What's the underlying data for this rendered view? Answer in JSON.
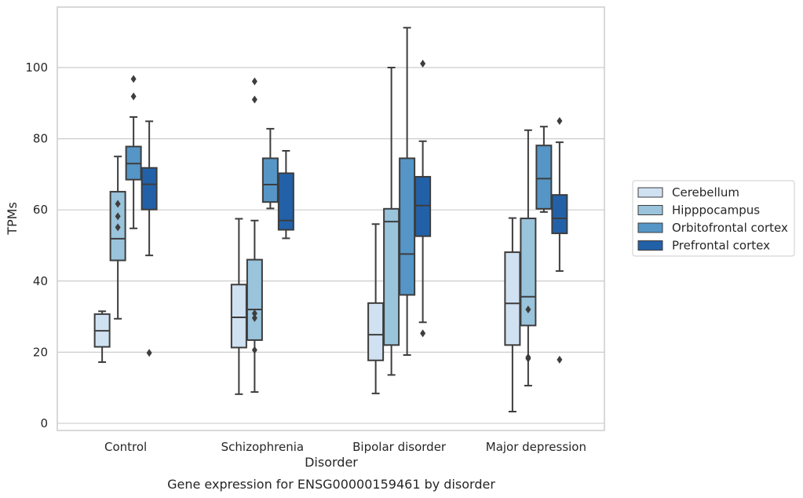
{
  "chart_data": {
    "type": "box",
    "title": "Gene expression for ENSG00000159461 by disorder",
    "xlabel": "Disorder",
    "ylabel": "TPMs",
    "ylim": [
      -2,
      117
    ],
    "yticks": [
      0,
      20,
      40,
      60,
      80,
      100
    ],
    "grid": true,
    "legend_position": "right",
    "categories": [
      "Control",
      "Schizophrenia",
      "Bipolar disorder",
      "Major depression"
    ],
    "series": [
      {
        "name": "Cerebellum",
        "color": "#d0e1f2",
        "boxes": [
          {
            "whisker_low": 17.2,
            "q1": 21.5,
            "median": 26,
            "q3": 30.7,
            "whisker_high": 31.5,
            "outliers": []
          },
          {
            "whisker_low": 8.2,
            "q1": 21.3,
            "median": 29.8,
            "q3": 39,
            "whisker_high": 57.5,
            "outliers": []
          },
          {
            "whisker_low": 8.4,
            "q1": 17.7,
            "median": 24.9,
            "q3": 33.8,
            "whisker_high": 56,
            "outliers": []
          },
          {
            "whisker_low": 3.3,
            "q1": 22,
            "median": 33.7,
            "q3": 48.1,
            "whisker_high": 57.7,
            "outliers": []
          }
        ]
      },
      {
        "name": "Hipppocampus",
        "color": "#9ac3dc",
        "boxes": [
          {
            "whisker_low": 29.4,
            "q1": 45.8,
            "median": 51.9,
            "q3": 65.1,
            "whisker_high": 75,
            "outliers": [
              55.1,
              58.2,
              61.7
            ]
          },
          {
            "whisker_low": 8.8,
            "q1": 23.4,
            "median": 32,
            "q3": 46,
            "whisker_high": 57,
            "outliers": [
              20.6,
              29.6,
              30.9,
              91,
              96.1
            ]
          },
          {
            "whisker_low": 13.6,
            "q1": 22,
            "median": 56.7,
            "q3": 60.3,
            "whisker_high": 100,
            "outliers": []
          },
          {
            "whisker_low": 10.6,
            "q1": 27.5,
            "median": 35.6,
            "q3": 57.6,
            "whisker_high": 82.4,
            "outliers": [
              18.2,
              18.6,
              32
            ]
          }
        ]
      },
      {
        "name": "Orbitofrontal cortex",
        "color": "#5596c7",
        "boxes": [
          {
            "whisker_low": 54.8,
            "q1": 68.5,
            "median": 73,
            "q3": 77.8,
            "whisker_high": 86.1,
            "outliers": [
              91.9,
              96.8
            ]
          },
          {
            "whisker_low": 60.4,
            "q1": 62.2,
            "median": 67.1,
            "q3": 74.5,
            "whisker_high": 82.8,
            "outliers": []
          },
          {
            "whisker_low": 19.2,
            "q1": 36.1,
            "median": 47.6,
            "q3": 74.5,
            "whisker_high": 111.2,
            "outliers": []
          },
          {
            "whisker_low": 59.4,
            "q1": 60.3,
            "median": 68.8,
            "q3": 78.1,
            "whisker_high": 83.4,
            "outliers": []
          }
        ]
      },
      {
        "name": "Prefrontal cortex",
        "color": "#2261a8",
        "boxes": [
          {
            "whisker_low": 47.2,
            "q1": 60.1,
            "median": 67.2,
            "q3": 71.8,
            "whisker_high": 84.9,
            "outliers": [
              19.8
            ]
          },
          {
            "whisker_low": 52,
            "q1": 54.4,
            "median": 57,
            "q3": 70.3,
            "whisker_high": 76.6,
            "outliers": []
          },
          {
            "whisker_low": 28.4,
            "q1": 52.6,
            "median": 61.2,
            "q3": 69.3,
            "whisker_high": 79.3,
            "outliers": [
              25.3,
              101.1
            ]
          },
          {
            "whisker_low": 42.8,
            "q1": 53.4,
            "median": 57.6,
            "q3": 64.2,
            "whisker_high": 79,
            "outliers": [
              17.9,
              85
            ]
          }
        ]
      }
    ]
  }
}
